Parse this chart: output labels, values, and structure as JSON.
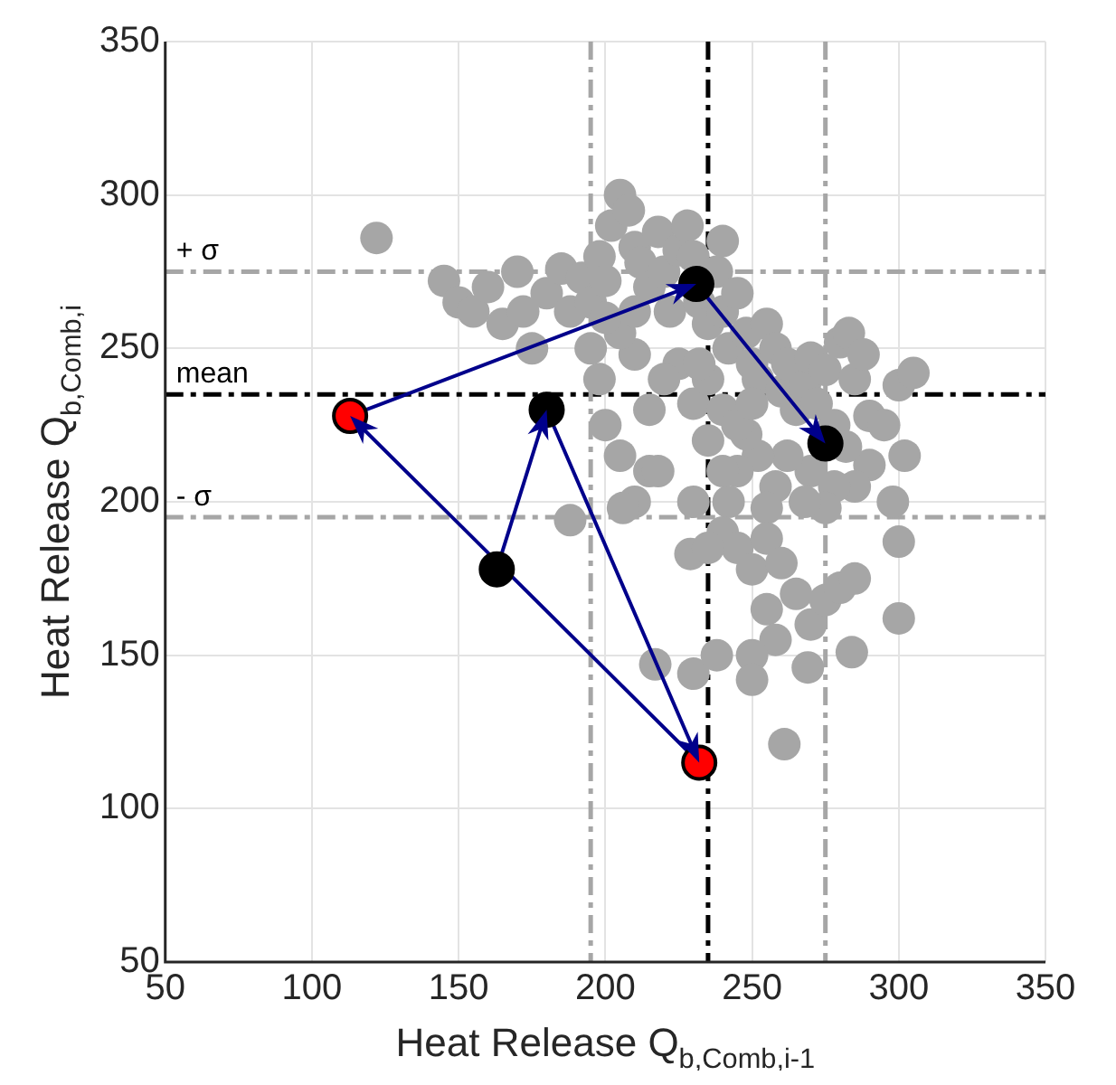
{
  "chart_data": {
    "type": "scatter",
    "xlabel": "Heat Release Q$_{b,Comb,i-1}$",
    "ylabel": "Heat Release Q$_{b,Comb,i}$",
    "xlim": [
      50,
      350
    ],
    "ylim": [
      50,
      350
    ],
    "xticks": [
      50,
      100,
      150,
      200,
      250,
      300,
      350
    ],
    "yticks": [
      50,
      100,
      150,
      200,
      250,
      300,
      350
    ],
    "grid": true,
    "marker": "circle",
    "ref_lines": [
      {
        "axis": "y",
        "value": 275,
        "label": "+ σ",
        "color": "#a6a6a6",
        "line_style": "dashed"
      },
      {
        "axis": "y",
        "value": 235,
        "label": "mean",
        "color": "#000000",
        "line_style": "dashed"
      },
      {
        "axis": "y",
        "value": 195,
        "label": "- σ",
        "color": "#a6a6a6",
        "line_style": "dashed"
      },
      {
        "axis": "x",
        "value": 195,
        "color": "#a6a6a6",
        "line_style": "dashed"
      },
      {
        "axis": "x",
        "value": 235,
        "color": "#000000",
        "line_style": "dashed"
      },
      {
        "axis": "x",
        "value": 275,
        "color": "#a6a6a6",
        "line_style": "dashed"
      }
    ],
    "series": [
      {
        "color": "#a6a6a6",
        "x": [
          122,
          145,
          150,
          155,
          160,
          165,
          170,
          172,
          175,
          180,
          185,
          188,
          192,
          195,
          198,
          200,
          202,
          205,
          208,
          210,
          212,
          215,
          218,
          220,
          222,
          225,
          228,
          230,
          232,
          235,
          238,
          240,
          242,
          245,
          248,
          250,
          252,
          255,
          258,
          260,
          262,
          265,
          268,
          270,
          272,
          275,
          278,
          280,
          283,
          285,
          288,
          290,
          295,
          300,
          305,
          302,
          298,
          290,
          285,
          282,
          278,
          275,
          270,
          268,
          262,
          258,
          255,
          252,
          248,
          245,
          242,
          240,
          245,
          250,
          255,
          260,
          265,
          270,
          275,
          280,
          285,
          284,
          300,
          255,
          258,
          250,
          250,
          261,
          269,
          230,
          217,
          238,
          229,
          235,
          240,
          235,
          230,
          225,
          220,
          215,
          210,
          205,
          200,
          195,
          198,
          200,
          205,
          210,
          215,
          230,
          235,
          240,
          245,
          250,
          210,
          240,
          232,
          206,
          218,
          188,
          300
        ],
        "values": [
          286,
          272,
          265,
          262,
          270,
          258,
          275,
          262,
          250,
          268,
          276,
          262,
          273,
          265,
          280,
          272,
          290,
          300,
          295,
          283,
          278,
          270,
          288,
          275,
          262,
          282,
          290,
          280,
          265,
          258,
          275,
          262,
          250,
          268,
          255,
          245,
          240,
          258,
          250,
          236,
          245,
          230,
          238,
          247,
          232,
          243,
          225,
          252,
          255,
          240,
          248,
          228,
          225,
          238,
          242,
          215,
          200,
          212,
          205,
          218,
          205,
          198,
          210,
          200,
          215,
          205,
          198,
          215,
          222,
          210,
          200,
          190,
          185,
          178,
          188,
          180,
          170,
          160,
          168,
          172,
          175,
          151,
          162,
          165,
          155,
          150,
          142,
          121,
          146,
          144,
          147,
          150,
          183,
          185,
          210,
          220,
          232,
          245,
          240,
          230,
          248,
          255,
          260,
          250,
          240,
          225,
          215,
          200,
          210,
          200,
          240,
          230,
          225,
          232,
          262,
          285,
          245,
          198,
          210,
          194,
          187
        ]
      },
      {
        "type": "line",
        "color": "#00008b",
        "x": [
          163,
          180,
          232,
          113,
          231,
          275
        ],
        "values": [
          178,
          230,
          115,
          228,
          271,
          219
        ],
        "colors": [
          "#000000",
          "#000000",
          "#ff0000",
          "#ff0000",
          "#000000",
          "#000000"
        ]
      }
    ]
  }
}
